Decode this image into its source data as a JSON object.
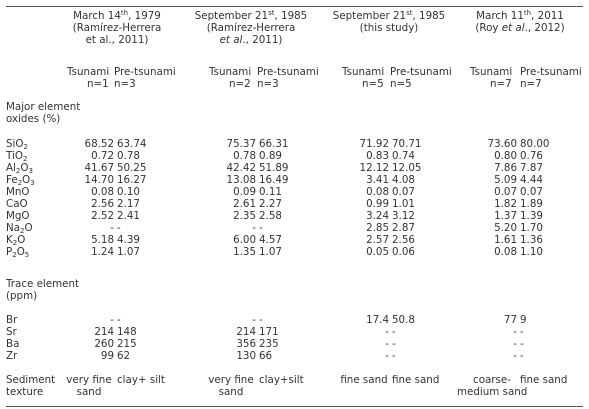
{
  "header": {
    "group1": {
      "date": "March 14",
      "sup": "th",
      "rest": ", 1979",
      "cite1": "(Ramírez-Herrera",
      "cite2": "et al., 2011)"
    },
    "group2": {
      "date": "September 21",
      "sup": "st",
      "rest": ", 1985",
      "cite1": "(Ramírez-Herrera",
      "cite2a": "et al",
      "cite2b": "., 2011)"
    },
    "group3": {
      "date": "September 21",
      "sup": "st",
      "rest": ", 1985",
      "cite1": "(this study)"
    },
    "group4": {
      "date": "March 11",
      "sup": "th",
      "rest": ", 2011",
      "cite1a": "(Roy ",
      "cite1b": "et al",
      "cite1c": "., 2012)"
    }
  },
  "subheaders": {
    "tsunami": "Tsunami",
    "pre": "Pre-tsunami",
    "n": [
      "n=1",
      "n=3",
      "n=2",
      "n=3",
      "n=5",
      "n=5",
      "n=7",
      "n=7"
    ]
  },
  "major": {
    "heading1": "Major element",
    "heading2": "oxides (%)",
    "rows": [
      {
        "parts": [
          {
            "t": "SiO"
          },
          {
            "sub": "2"
          }
        ],
        "values": [
          "68.52",
          "63.74",
          "75.37",
          "66.31",
          "71.92",
          "70.71",
          "73.60",
          "80.00"
        ]
      },
      {
        "parts": [
          {
            "t": "TiO"
          },
          {
            "sub": "2"
          }
        ],
        "values": [
          "0.72",
          "0.78",
          "0.78",
          "0.89",
          "0.83",
          "0.74",
          "0.80",
          "0.76"
        ]
      },
      {
        "parts": [
          {
            "t": "Al"
          },
          {
            "sub": "2"
          },
          {
            "t": "O"
          },
          {
            "sub": "3"
          }
        ],
        "values": [
          "41.67",
          "50.25",
          "42.42",
          "51.89",
          "12.12",
          "12.05",
          "7.86",
          "7.87"
        ]
      },
      {
        "parts": [
          {
            "t": "Fe"
          },
          {
            "sub": "2"
          },
          {
            "t": "O"
          },
          {
            "sub": "3"
          }
        ],
        "values": [
          "14.70",
          "16.27",
          "13.08",
          "16.49",
          "3.41",
          "4.08",
          "5.09",
          "4.44"
        ]
      },
      {
        "parts": [
          {
            "t": "MnO"
          }
        ],
        "values": [
          "0.08",
          "0.10",
          "0.09",
          "0.11",
          "0.08",
          "0.07",
          "0.07",
          "0.07"
        ]
      },
      {
        "parts": [
          {
            "t": "CaO"
          }
        ],
        "values": [
          "2.56",
          "2.17",
          "2.61",
          "2.27",
          "0.99",
          "1.01",
          "1.82",
          "1.89"
        ]
      },
      {
        "parts": [
          {
            "t": "MgO"
          }
        ],
        "values": [
          "2.52",
          "2.41",
          "2.35",
          "2.58",
          "3.24",
          "3.12",
          "1.37",
          "1.39"
        ]
      },
      {
        "parts": [
          {
            "t": "Na"
          },
          {
            "sub": "2"
          },
          {
            "t": "O"
          }
        ],
        "values": [
          "-",
          "-",
          "-",
          "-",
          "2.85",
          "2.87",
          "5.20",
          "1.70"
        ]
      },
      {
        "parts": [
          {
            "t": "K"
          },
          {
            "sub": "2"
          },
          {
            "t": "O"
          }
        ],
        "values": [
          "5.18",
          "4.39",
          "6.00",
          "4.57",
          "2.57",
          "2.56",
          "1.61",
          "1.36"
        ]
      },
      {
        "parts": [
          {
            "t": "P"
          },
          {
            "sub": "2"
          },
          {
            "t": "O"
          },
          {
            "sub": "5"
          }
        ],
        "values": [
          "1.24",
          "1.07",
          "1.35",
          "1.07",
          "0.05",
          "0.06",
          "0.08",
          "1.10"
        ]
      }
    ]
  },
  "trace": {
    "heading1": "Trace element",
    "heading2": "(ppm)",
    "rows": [
      {
        "parts": [
          {
            "t": "Br"
          }
        ],
        "values": [
          "-",
          "-",
          "-",
          "-",
          "17.4",
          "50.8",
          "77",
          "9"
        ]
      },
      {
        "parts": [
          {
            "t": "Sr"
          }
        ],
        "values": [
          "214",
          "148",
          "214",
          "171",
          "-",
          "-",
          "-",
          "-"
        ]
      },
      {
        "parts": [
          {
            "t": "Ba"
          }
        ],
        "values": [
          "260",
          "215",
          "356",
          "235",
          "-",
          "-",
          "-",
          "-"
        ]
      },
      {
        "parts": [
          {
            "t": "Zr"
          }
        ],
        "values": [
          "99",
          "62",
          "130",
          "66",
          "-",
          "-",
          "-",
          "-"
        ]
      }
    ]
  },
  "texture": {
    "label1": "Sediment",
    "label2": "texture",
    "cells": [
      {
        "l1": "very fine",
        "l2": "sand"
      },
      {
        "l1": "clay+ silt",
        "l2": ""
      },
      {
        "l1": "very fine",
        "l2": "sand"
      },
      {
        "l1": "clay+silt",
        "l2": ""
      },
      {
        "l1": "fine sand",
        "l2": ""
      },
      {
        "l1": "fine sand",
        "l2": ""
      },
      {
        "l1": "coarse-",
        "l2": "medium sand"
      },
      {
        "l1": "fine sand",
        "l2": ""
      }
    ]
  }
}
